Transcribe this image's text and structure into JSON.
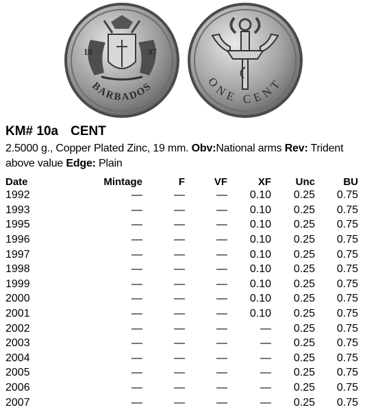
{
  "coin_images": {
    "obverse": {
      "legend": "BARBADOS",
      "date_left": "19",
      "date_right": "97"
    },
    "reverse": {
      "legend": "ONE CENT"
    }
  },
  "header": {
    "km_number": "KM# 10a",
    "denomination": "CENT"
  },
  "description": {
    "specs": "2.5000 g., Copper Plated Zinc, 19 mm.",
    "obv_label": "Obv:",
    "obv_text": "National arms",
    "rev_label": "Rev:",
    "rev_text": "Trident above value",
    "edge_label": "Edge:",
    "edge_text": "Plain"
  },
  "table": {
    "columns": [
      "Date",
      "Mintage",
      "F",
      "VF",
      "XF",
      "Unc",
      "BU"
    ],
    "rows": [
      [
        "1992",
        "—",
        "—",
        "—",
        "0.10",
        "0.25",
        "0.75"
      ],
      [
        "1993",
        "—",
        "—",
        "—",
        "0.10",
        "0.25",
        "0.75"
      ],
      [
        "1995",
        "—",
        "—",
        "—",
        "0.10",
        "0.25",
        "0.75"
      ],
      [
        "1996",
        "—",
        "—",
        "—",
        "0.10",
        "0.25",
        "0.75"
      ],
      [
        "1997",
        "—",
        "—",
        "—",
        "0.10",
        "0.25",
        "0.75"
      ],
      [
        "1998",
        "—",
        "—",
        "—",
        "0.10",
        "0.25",
        "0.75"
      ],
      [
        "1999",
        "—",
        "—",
        "—",
        "0.10",
        "0.25",
        "0.75"
      ],
      [
        "2000",
        "—",
        "—",
        "—",
        "0.10",
        "0.25",
        "0.75"
      ],
      [
        "2001",
        "—",
        "—",
        "—",
        "0.10",
        "0.25",
        "0.75"
      ],
      [
        "2002",
        "—",
        "—",
        "—",
        "—",
        "0.25",
        "0.75"
      ],
      [
        "2003",
        "—",
        "—",
        "—",
        "—",
        "0.25",
        "0.75"
      ],
      [
        "2004",
        "—",
        "—",
        "—",
        "—",
        "0.25",
        "0.75"
      ],
      [
        "2005",
        "—",
        "—",
        "—",
        "—",
        "0.25",
        "0.75"
      ],
      [
        "2006",
        "—",
        "—",
        "—",
        "—",
        "0.25",
        "0.75"
      ],
      [
        "2007",
        "—",
        "—",
        "—",
        "—",
        "0.25",
        "0.75"
      ]
    ]
  }
}
